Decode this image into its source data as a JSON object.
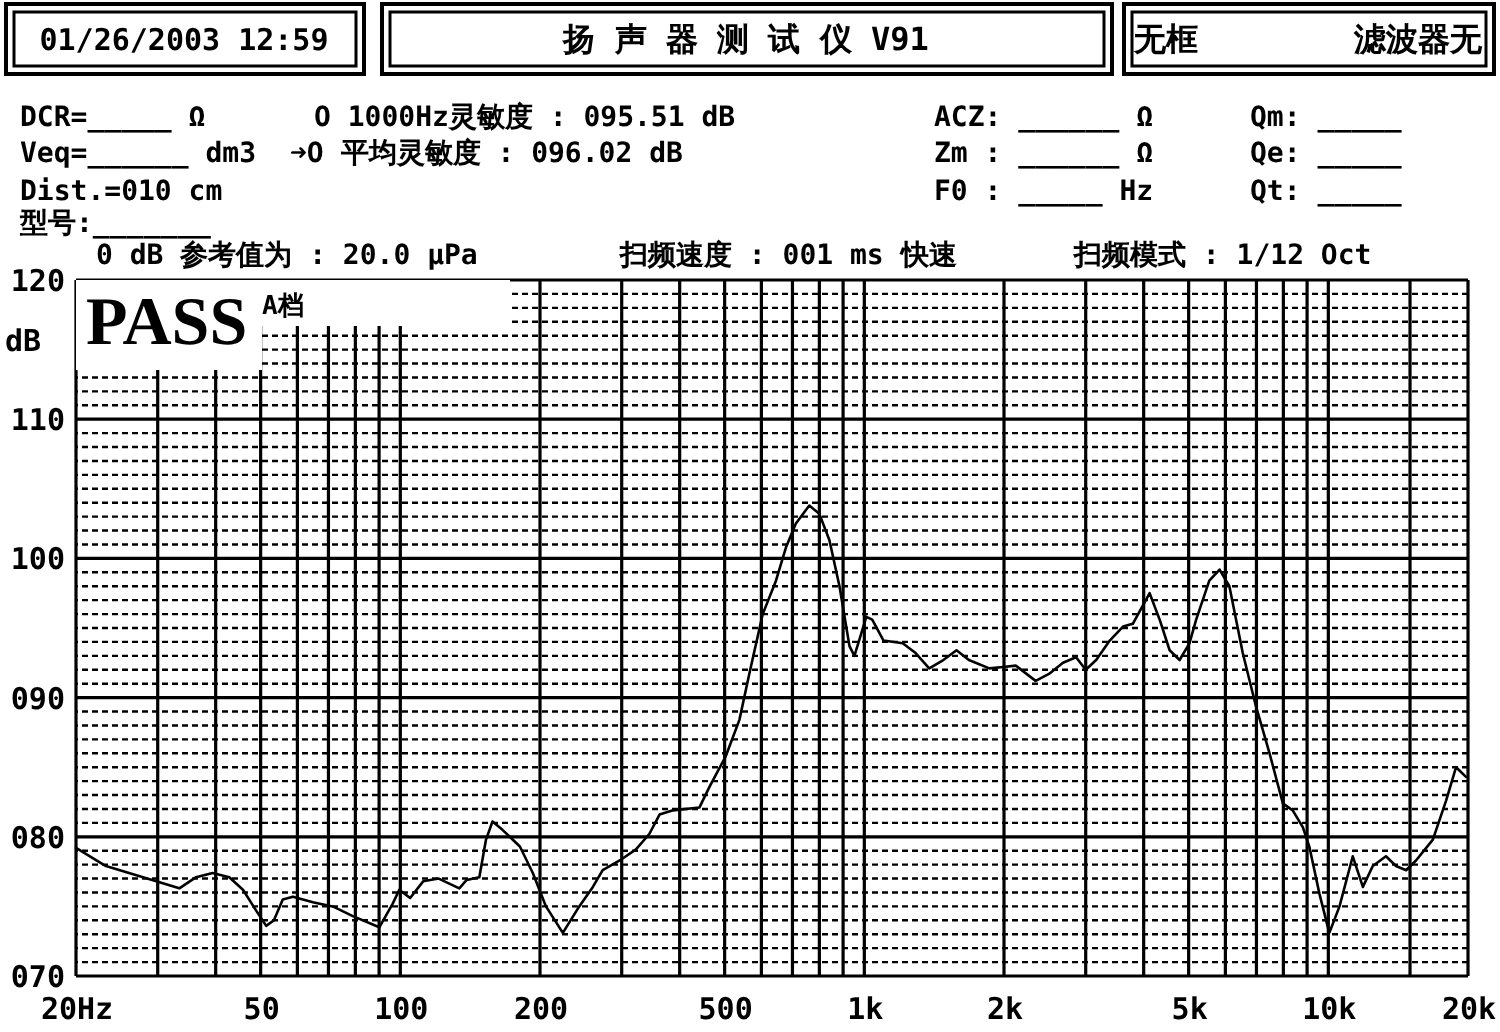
{
  "chart_data": {
    "type": "line",
    "title": "扬 声 器 测 试 仪  V91",
    "ylabel": "dB",
    "annotations": [
      "01/26/2003 12:59",
      "无框",
      "滤波器无",
      "DCR=_____ Ω",
      "Veq=______ dm3",
      "Dist.=010 cm",
      "型号:_______",
      "O 1000Hz灵敏度 : 095.51 dB",
      "➜O 平均灵敏度 : 096.02 dB",
      "ACZ: ______ Ω",
      "Zm : ______ Ω",
      "F0 : _____ Hz",
      "Qm: _____",
      "Qe: _____",
      "Qt: _____",
      "0 dB 参考值为 : 20.0 μPa",
      "扫频速度 : 001 ms 快速",
      "扫频模式 : 1/12 Oct",
      "PASS",
      "A档"
    ],
    "x": [
      20,
      23.2,
      33.4,
      36.3,
      39.4,
      42.8,
      45.8,
      48.9,
      51.4,
      53.4,
      55.8,
      58.7,
      64.8,
      71.5,
      79,
      90.1,
      96.3,
      99.5,
      105,
      112,
      121,
      134,
      139,
      148,
      153,
      158,
      166,
      181,
      193,
      206,
      224,
      243,
      260,
      273,
      297,
      322,
      344,
      362,
      387,
      441,
      464,
      503,
      538,
      565,
      604,
      645,
      678,
      712,
      761,
      800,
      841,
      884,
      929,
      952,
      1010,
      1040,
      1100,
      1210,
      1290,
      1380,
      1480,
      1580,
      1680,
      1860,
      1990,
      2120,
      2340,
      2500,
      2680,
      2860,
      3000,
      3160,
      3380,
      3610,
      3790,
      4120,
      4330,
      4550,
      4780,
      5020,
      5190,
      5540,
      5830,
      6120,
      6540,
      6980,
      7470,
      7980,
      8380,
      8810,
      9100,
      9570,
      10050,
      10570,
      11290,
      11870,
      12470,
      13310,
      13990,
      14710,
      15450,
      16800,
      17940,
      18850,
      19800
    ],
    "series": [
      {
        "color": "#000000",
        "values": [
          79.2,
          77.9,
          76.3,
          77.1,
          77.4,
          77.1,
          76.2,
          74.7,
          73.6,
          74.0,
          75.5,
          75.7,
          75.3,
          75.0,
          74.3,
          73.5,
          75.2,
          76.2,
          75.6,
          76.8,
          77.0,
          76.3,
          76.9,
          77.1,
          79.8,
          81.1,
          80.5,
          79.3,
          77.4,
          75.0,
          73.1,
          75.0,
          76.4,
          77.6,
          78.3,
          79.1,
          80.2,
          81.6,
          81.9,
          82.1,
          83.6,
          85.8,
          88.4,
          91.7,
          96.0,
          98.4,
          100.8,
          102.5,
          103.8,
          103.2,
          101.3,
          98.0,
          93.7,
          93.0,
          95.8,
          95.6,
          94.1,
          93.9,
          93.2,
          92.1,
          92.7,
          93.4,
          92.7,
          92.1,
          92.2,
          92.3,
          91.2,
          91.7,
          92.5,
          92.9,
          92.0,
          92.7,
          94.1,
          95.1,
          95.3,
          97.5,
          95.6,
          93.4,
          92.7,
          93.9,
          95.6,
          98.4,
          99.2,
          98.0,
          93.2,
          89.4,
          86.0,
          82.4,
          81.9,
          80.7,
          79.3,
          75.9,
          73.1,
          75.0,
          78.6,
          76.4,
          77.9,
          78.6,
          77.9,
          77.6,
          78.3,
          79.8,
          82.6,
          85.0,
          84.3
        ]
      }
    ],
    "xlim": [
      20,
      20000
    ],
    "ylim": [
      70,
      120
    ],
    "xticks": [
      {
        "value": 20,
        "label": "20Hz"
      },
      {
        "value": 30,
        "label": null
      },
      {
        "value": 40,
        "label": null
      },
      50,
      {
        "value": 60,
        "label": null
      },
      {
        "value": 70,
        "label": null
      },
      {
        "value": 80,
        "label": null
      },
      {
        "value": 90,
        "label": null
      },
      100,
      200,
      {
        "value": 300,
        "label": null
      },
      {
        "value": 400,
        "label": null
      },
      500,
      {
        "value": 600,
        "label": null
      },
      {
        "value": 700,
        "label": null
      },
      {
        "value": 800,
        "label": null
      },
      {
        "value": 900,
        "label": null
      },
      {
        "value": 1000,
        "label": "1k"
      },
      {
        "value": 2000,
        "label": "2k"
      },
      {
        "value": 3000,
        "label": null
      },
      {
        "value": 4000,
        "label": null
      },
      {
        "value": 5000,
        "label": "5k"
      },
      {
        "value": 6000,
        "label": null
      },
      {
        "value": 7000,
        "label": null
      },
      {
        "value": 8000,
        "label": null
      },
      {
        "value": 9000,
        "label": null
      },
      {
        "value": 10000,
        "label": "10k"
      },
      {
        "value": 15000,
        "label": null
      },
      {
        "value": 20000,
        "label": "20k"
      }
    ],
    "yticks": [
      {
        "value": 70,
        "label": "070"
      },
      {
        "value": 71,
        "label": null
      },
      {
        "value": 72,
        "label": null
      },
      {
        "value": 73,
        "label": null
      },
      {
        "value": 74,
        "label": null
      },
      {
        "value": 75,
        "label": null
      },
      {
        "value": 76,
        "label": null
      },
      {
        "value": 77,
        "label": null
      },
      {
        "value": 78,
        "label": null
      },
      {
        "value": 79,
        "label": null
      },
      {
        "value": 80,
        "label": "080"
      },
      {
        "value": 81,
        "label": null
      },
      {
        "value": 82,
        "label": null
      },
      {
        "value": 83,
        "label": null
      },
      {
        "value": 84,
        "label": null
      },
      {
        "value": 85,
        "label": null
      },
      {
        "value": 86,
        "label": null
      },
      {
        "value": 87,
        "label": null
      },
      {
        "value": 88,
        "label": null
      },
      {
        "value": 89,
        "label": null
      },
      {
        "value": 90,
        "label": "090"
      },
      {
        "value": 91,
        "label": null
      },
      {
        "value": 92,
        "label": null
      },
      {
        "value": 93,
        "label": null
      },
      {
        "value": 94,
        "label": null
      },
      {
        "value": 95,
        "label": null
      },
      {
        "value": 96,
        "label": null
      },
      {
        "value": 97,
        "label": null
      },
      {
        "value": 98,
        "label": null
      },
      {
        "value": 99,
        "label": null
      },
      100,
      {
        "value": 101,
        "label": null
      },
      {
        "value": 102,
        "label": null
      },
      {
        "value": 103,
        "label": null
      },
      {
        "value": 104,
        "label": null
      },
      {
        "value": 105,
        "label": null
      },
      {
        "value": 106,
        "label": null
      },
      {
        "value": 107,
        "label": null
      },
      {
        "value": 108,
        "label": null
      },
      {
        "value": 109,
        "label": null
      },
      110,
      {
        "value": 111,
        "label": null
      },
      {
        "value": 112,
        "label": null
      },
      {
        "value": 113,
        "label": null
      },
      {
        "value": 114,
        "label": null
      },
      {
        "value": 115,
        "label": null
      },
      {
        "value": 116,
        "label": null
      },
      {
        "value": 117,
        "label": null
      },
      {
        "value": 118,
        "label": null
      },
      {
        "value": 119,
        "label": null
      },
      120
    ],
    "log": "x",
    "grid": true
  }
}
